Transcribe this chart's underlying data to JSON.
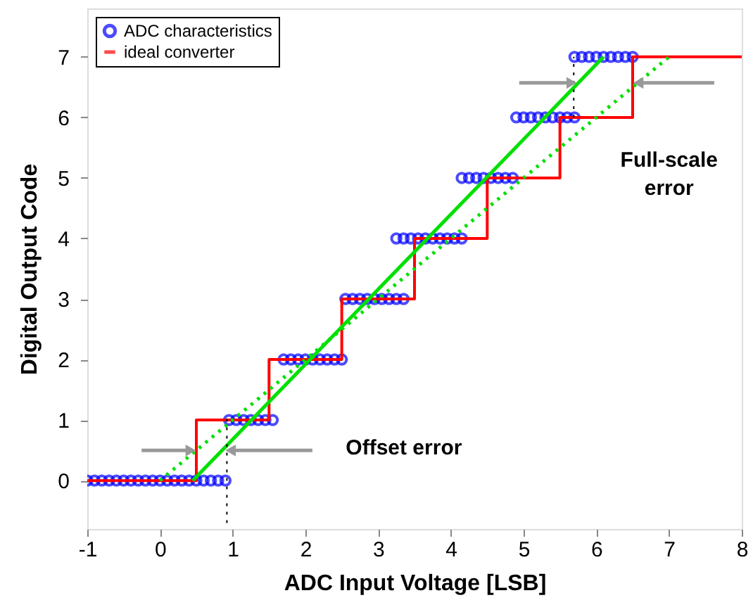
{
  "chart_data": {
    "type": "scatter",
    "xlabel": "ADC Input Voltage  [LSB]",
    "ylabel": "Digital Output Code",
    "xlim": [
      -1,
      8
    ],
    "xticks": [
      -1,
      0,
      1,
      2,
      3,
      4,
      5,
      6,
      7,
      8
    ],
    "ylim": [
      -0.8,
      7.8
    ],
    "yticks": [
      0,
      1,
      2,
      3,
      4,
      5,
      6,
      7
    ],
    "grid": false,
    "legend": "top left",
    "annotations": [
      "Offset error",
      "Full-scale error"
    ],
    "series": [
      {
        "name": "ADC characteristics",
        "marker": "circle",
        "color": "#0000ff",
        "x": [
          -1,
          -0.9,
          -0.8,
          -0.7,
          -0.6,
          -0.5,
          -0.4,
          -0.3,
          -0.2,
          -0.1,
          0,
          0.1,
          0.2,
          0.3,
          0.4,
          0.5,
          0.6,
          0.7,
          0.8,
          0.9,
          0.95,
          1.05,
          1.15,
          1.25,
          1.35,
          1.45,
          1.55,
          1.7,
          1.8,
          1.9,
          2,
          2.1,
          2.2,
          2.3,
          2.4,
          2.5,
          2.55,
          2.65,
          2.75,
          2.85,
          2.95,
          3.05,
          3.15,
          3.25,
          3.35,
          3.25,
          3.35,
          3.45,
          3.55,
          3.65,
          3.75,
          3.85,
          3.95,
          4.05,
          4.15,
          4.15,
          4.25,
          4.35,
          4.45,
          4.55,
          4.65,
          4.75,
          4.85,
          4.9,
          5,
          5.1,
          5.2,
          5.3,
          5.4,
          5.5,
          5.6,
          5.7,
          5.7,
          5.8,
          5.9,
          6,
          6.1,
          6.2,
          6.3,
          6.4,
          6.5
        ],
        "values": [
          0,
          0,
          0,
          0,
          0,
          0,
          0,
          0,
          0,
          0,
          0,
          0,
          0,
          0,
          0,
          0,
          0,
          0,
          0,
          0,
          1,
          1,
          1,
          1,
          1,
          1,
          1,
          2,
          2,
          2,
          2,
          2,
          2,
          2,
          2,
          2,
          3,
          3,
          3,
          3,
          3,
          3,
          3,
          3,
          3,
          4,
          4,
          4,
          4,
          4,
          4,
          4,
          4,
          4,
          4,
          5,
          5,
          5,
          5,
          5,
          5,
          5,
          5,
          6,
          6,
          6,
          6,
          6,
          6,
          6,
          6,
          6,
          7,
          7,
          7,
          7,
          7,
          7,
          7,
          7,
          7
        ]
      },
      {
        "name": "ideal converter",
        "type": "step",
        "marker": "none",
        "line_style": "solid",
        "color": "#ff0000",
        "x": [
          -1,
          0.5,
          1.5,
          2.5,
          3.5,
          4.5,
          5.5,
          6.5,
          8
        ],
        "values": [
          0,
          1,
          2,
          3,
          4,
          5,
          6,
          7,
          7
        ]
      },
      {
        "type": "line",
        "line_style": "solid",
        "color": "#00e000",
        "x": [
          0.45,
          6.1
        ],
        "values": [
          0,
          7
        ]
      },
      {
        "type": "line",
        "line_style": "dotted",
        "color": "#00e000",
        "x": [
          0,
          7
        ],
        "values": [
          0,
          7
        ]
      },
      {
        "type": "line",
        "line_style": "dotted",
        "color": "#000000",
        "x": [
          0.92,
          0.92
        ],
        "values": [
          -0.7,
          1.1
        ]
      },
      {
        "type": "line",
        "line_style": "dotted",
        "color": "#000000",
        "x": [
          5.69,
          5.69
        ],
        "values": [
          6,
          7
        ]
      }
    ]
  }
}
